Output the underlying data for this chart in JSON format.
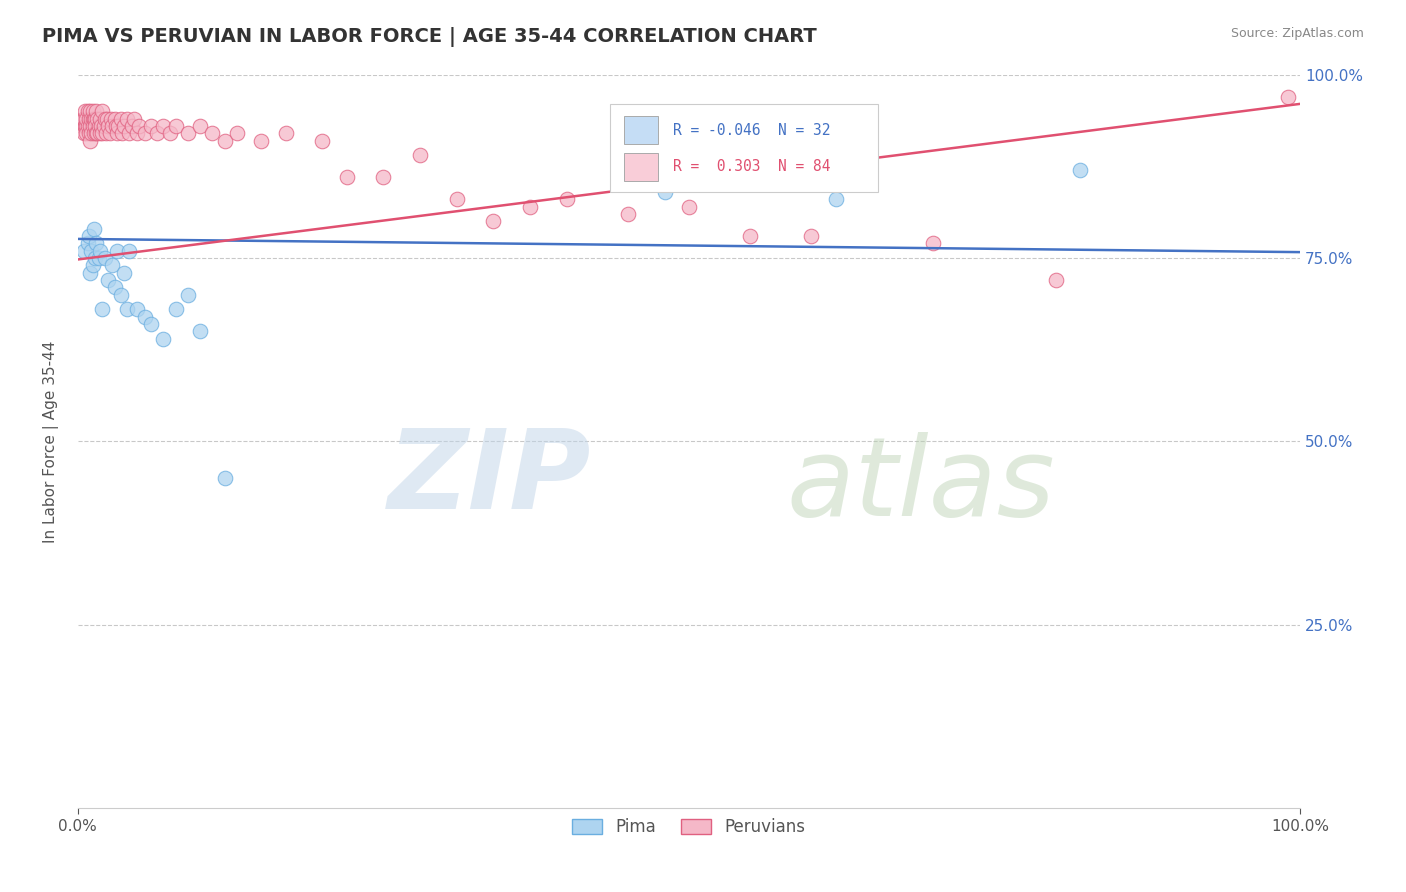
{
  "title": "PIMA VS PERUVIAN IN LABOR FORCE | AGE 35-44 CORRELATION CHART",
  "source_text": "Source: ZipAtlas.com",
  "ylabel": "In Labor Force | Age 35-44",
  "xlim": [
    0.0,
    1.0
  ],
  "ylim": [
    0.0,
    1.0
  ],
  "ytick_positions": [
    0.25,
    0.5,
    0.75,
    1.0
  ],
  "pima_color": "#aed4f0",
  "pima_edge_color": "#6aaee0",
  "peruvian_color": "#f5b8c8",
  "peruvian_edge_color": "#e06080",
  "trendline_pima_color": "#4472c4",
  "trendline_peruvian_color": "#e05070",
  "legend_box_pima_color": "#c5ddf5",
  "legend_box_peruvian_color": "#f9cdd8",
  "pima_R": -0.046,
  "pima_N": 32,
  "peruvian_R": 0.303,
  "peruvian_N": 84,
  "watermark_zip_color": "#c0d4e8",
  "watermark_atlas_color": "#b8d0b0",
  "pima_trendline_start_y": 0.776,
  "pima_trendline_end_y": 0.758,
  "peruvian_trendline_start_y": 0.748,
  "peruvian_trendline_end_y": 0.96,
  "pima_x": [
    0.005,
    0.008,
    0.009,
    0.01,
    0.011,
    0.012,
    0.013,
    0.014,
    0.015,
    0.017,
    0.018,
    0.02,
    0.022,
    0.025,
    0.028,
    0.03,
    0.032,
    0.035,
    0.038,
    0.04,
    0.042,
    0.048,
    0.055,
    0.06,
    0.07,
    0.08,
    0.09,
    0.1,
    0.12,
    0.48,
    0.62,
    0.82
  ],
  "pima_y": [
    0.76,
    0.77,
    0.78,
    0.73,
    0.76,
    0.74,
    0.79,
    0.75,
    0.77,
    0.75,
    0.76,
    0.68,
    0.75,
    0.72,
    0.74,
    0.71,
    0.76,
    0.7,
    0.73,
    0.68,
    0.76,
    0.68,
    0.67,
    0.66,
    0.64,
    0.68,
    0.7,
    0.65,
    0.45,
    0.84,
    0.83,
    0.87
  ],
  "peruvian_x": [
    0.003,
    0.004,
    0.005,
    0.005,
    0.006,
    0.006,
    0.007,
    0.007,
    0.007,
    0.008,
    0.008,
    0.009,
    0.009,
    0.01,
    0.01,
    0.01,
    0.011,
    0.011,
    0.012,
    0.012,
    0.012,
    0.013,
    0.013,
    0.014,
    0.014,
    0.015,
    0.015,
    0.016,
    0.016,
    0.017,
    0.018,
    0.018,
    0.019,
    0.02,
    0.02,
    0.021,
    0.022,
    0.023,
    0.024,
    0.025,
    0.026,
    0.027,
    0.028,
    0.03,
    0.031,
    0.032,
    0.033,
    0.035,
    0.036,
    0.038,
    0.04,
    0.042,
    0.044,
    0.046,
    0.048,
    0.05,
    0.055,
    0.06,
    0.065,
    0.07,
    0.075,
    0.08,
    0.09,
    0.1,
    0.11,
    0.12,
    0.13,
    0.15,
    0.17,
    0.2,
    0.22,
    0.25,
    0.28,
    0.31,
    0.34,
    0.37,
    0.4,
    0.45,
    0.5,
    0.55,
    0.6,
    0.7,
    0.8,
    0.99
  ],
  "peruvian_y": [
    0.93,
    0.94,
    0.94,
    0.92,
    0.95,
    0.93,
    0.93,
    0.94,
    0.92,
    0.95,
    0.93,
    0.94,
    0.92,
    0.95,
    0.93,
    0.91,
    0.94,
    0.92,
    0.94,
    0.93,
    0.95,
    0.92,
    0.94,
    0.94,
    0.93,
    0.95,
    0.92,
    0.94,
    0.92,
    0.93,
    0.94,
    0.92,
    0.93,
    0.95,
    0.92,
    0.93,
    0.94,
    0.92,
    0.94,
    0.93,
    0.92,
    0.94,
    0.93,
    0.94,
    0.93,
    0.92,
    0.93,
    0.94,
    0.92,
    0.93,
    0.94,
    0.92,
    0.93,
    0.94,
    0.92,
    0.93,
    0.92,
    0.93,
    0.92,
    0.93,
    0.92,
    0.93,
    0.92,
    0.93,
    0.92,
    0.91,
    0.92,
    0.91,
    0.92,
    0.91,
    0.86,
    0.86,
    0.89,
    0.83,
    0.8,
    0.82,
    0.83,
    0.81,
    0.82,
    0.78,
    0.78,
    0.77,
    0.72,
    0.97
  ]
}
